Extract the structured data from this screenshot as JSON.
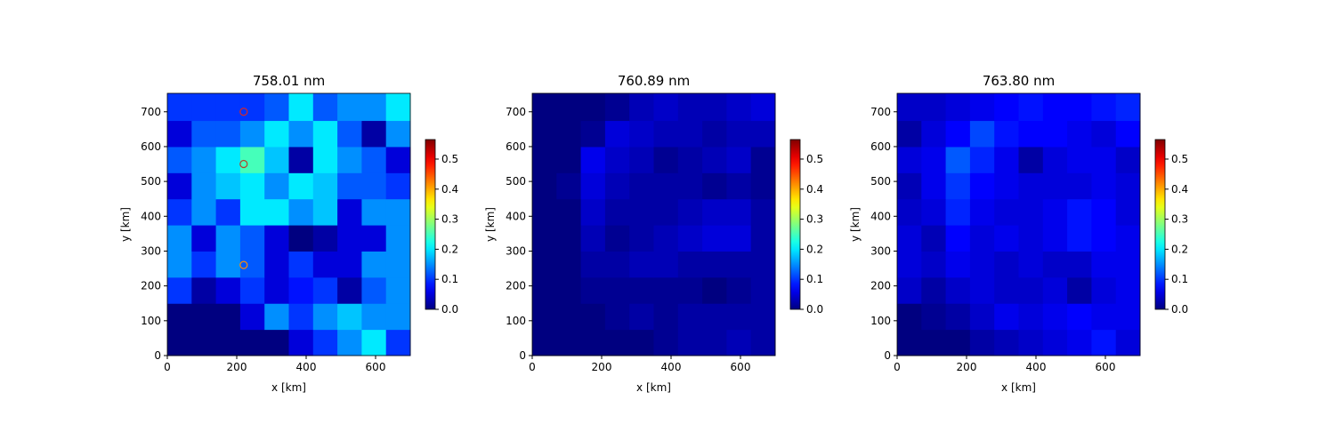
{
  "chart_data": [
    {
      "type": "heatmap",
      "title": "758.01 nm",
      "x_label": "x [km]",
      "y_label": "y [km]",
      "colormap": "jet",
      "xlim": [
        0,
        700
      ],
      "ylim": [
        0,
        753
      ],
      "xticks": [
        0,
        200,
        400,
        600
      ],
      "yticks": [
        0,
        100,
        200,
        300,
        400,
        500,
        600,
        700
      ],
      "clim": [
        0,
        0.565
      ],
      "cticks": [
        {
          "value": 0,
          "label": "0.0"
        },
        0.1,
        0.2,
        0.3,
        0.4,
        0.5
      ],
      "xbins": [
        0,
        70,
        140,
        210,
        280,
        350,
        420,
        490,
        560,
        630,
        700
      ],
      "ybins": [
        0,
        75,
        150,
        225,
        300,
        375,
        450,
        525,
        600,
        675,
        753
      ],
      "z": [
        [
          0.0,
          0.0,
          0.0,
          0.0,
          0.0,
          0.05,
          0.1,
          0.15,
          0.2,
          0.1
        ],
        [
          0.0,
          0.0,
          0.0,
          0.05,
          0.15,
          0.1,
          0.15,
          0.18,
          0.15,
          0.15
        ],
        [
          0.1,
          0.02,
          0.05,
          0.1,
          0.05,
          0.08,
          0.1,
          0.02,
          0.12,
          0.15
        ],
        [
          0.15,
          0.1,
          0.15,
          0.12,
          0.05,
          0.1,
          0.05,
          0.05,
          0.15,
          0.15
        ],
        [
          0.15,
          0.05,
          0.15,
          0.12,
          0.05,
          0.0,
          0.02,
          0.05,
          0.05,
          0.15
        ],
        [
          0.1,
          0.15,
          0.1,
          0.2,
          0.2,
          0.15,
          0.18,
          0.05,
          0.15,
          0.15
        ],
        [
          0.05,
          0.15,
          0.18,
          0.2,
          0.15,
          0.2,
          0.18,
          0.12,
          0.12,
          0.1
        ],
        [
          0.12,
          0.15,
          0.2,
          0.25,
          0.18,
          0.02,
          0.2,
          0.15,
          0.12,
          0.05
        ],
        [
          0.05,
          0.12,
          0.12,
          0.15,
          0.2,
          0.15,
          0.2,
          0.12,
          0.02,
          0.15
        ],
        [
          0.1,
          0.1,
          0.1,
          0.1,
          0.12,
          0.2,
          0.12,
          0.15,
          0.15,
          0.2
        ]
      ],
      "markers": {
        "x": [
          220,
          220,
          220
        ],
        "y": [
          700,
          550,
          260
        ],
        "colors": [
          "#d62728",
          "#b5412a",
          "#ff8c00"
        ]
      }
    },
    {
      "type": "heatmap",
      "title": "760.89 nm",
      "x_label": "x [km]",
      "y_label": "y [km]",
      "colormap": "jet",
      "xlim": [
        0,
        700
      ],
      "ylim": [
        0,
        753
      ],
      "xticks": [
        0,
        200,
        400,
        600
      ],
      "yticks": [
        0,
        100,
        200,
        300,
        400,
        500,
        600,
        700
      ],
      "clim": [
        0,
        0.565
      ],
      "cticks": [
        {
          "value": 0,
          "label": "0.0"
        },
        0.1,
        0.2,
        0.3,
        0.4,
        0.5
      ],
      "xbins": [
        0,
        70,
        140,
        210,
        280,
        350,
        420,
        490,
        560,
        630,
        700
      ],
      "ybins": [
        0,
        75,
        150,
        225,
        300,
        375,
        450,
        525,
        600,
        675,
        753
      ],
      "z": [
        [
          0.0,
          0.0,
          0.0,
          0.0,
          0.0,
          0.01,
          0.02,
          0.02,
          0.03,
          0.02
        ],
        [
          0.0,
          0.0,
          0.0,
          0.01,
          0.02,
          0.01,
          0.02,
          0.02,
          0.02,
          0.02
        ],
        [
          0.0,
          0.0,
          0.01,
          0.01,
          0.01,
          0.01,
          0.01,
          0.0,
          0.01,
          0.02
        ],
        [
          0.0,
          0.0,
          0.02,
          0.02,
          0.03,
          0.03,
          0.02,
          0.02,
          0.02,
          0.02
        ],
        [
          0.0,
          0.0,
          0.03,
          0.01,
          0.02,
          0.03,
          0.04,
          0.05,
          0.05,
          0.02
        ],
        [
          0.0,
          0.0,
          0.04,
          0.02,
          0.02,
          0.02,
          0.03,
          0.04,
          0.04,
          0.02
        ],
        [
          0.0,
          0.01,
          0.05,
          0.03,
          0.02,
          0.02,
          0.02,
          0.01,
          0.02,
          0.01
        ],
        [
          0.0,
          0.0,
          0.06,
          0.04,
          0.03,
          0.01,
          0.02,
          0.03,
          0.04,
          0.01
        ],
        [
          0.0,
          0.0,
          0.01,
          0.05,
          0.04,
          0.03,
          0.03,
          0.02,
          0.03,
          0.03
        ],
        [
          0.0,
          0.0,
          0.0,
          0.01,
          0.03,
          0.04,
          0.03,
          0.03,
          0.04,
          0.05
        ]
      ]
    },
    {
      "type": "heatmap",
      "title": "763.80 nm",
      "x_label": "x [km]",
      "y_label": "y [km]",
      "colormap": "jet",
      "xlim": [
        0,
        700
      ],
      "ylim": [
        0,
        753
      ],
      "xticks": [
        0,
        200,
        400,
        600
      ],
      "yticks": [
        0,
        100,
        200,
        300,
        400,
        500,
        600,
        700
      ],
      "clim": [
        0,
        0.565
      ],
      "cticks": [
        {
          "value": 0,
          "label": "0.0"
        },
        0.1,
        0.2,
        0.3,
        0.4,
        0.5
      ],
      "xbins": [
        0,
        70,
        140,
        210,
        280,
        350,
        420,
        490,
        560,
        630,
        700
      ],
      "ybins": [
        0,
        75,
        150,
        225,
        300,
        375,
        450,
        525,
        600,
        675,
        753
      ],
      "z": [
        [
          0.0,
          0.0,
          0.0,
          0.02,
          0.03,
          0.04,
          0.05,
          0.06,
          0.08,
          0.05
        ],
        [
          0.0,
          0.01,
          0.02,
          0.04,
          0.06,
          0.05,
          0.06,
          0.07,
          0.06,
          0.06
        ],
        [
          0.04,
          0.02,
          0.04,
          0.05,
          0.04,
          0.04,
          0.05,
          0.02,
          0.05,
          0.06
        ],
        [
          0.05,
          0.04,
          0.06,
          0.05,
          0.04,
          0.05,
          0.04,
          0.04,
          0.06,
          0.06
        ],
        [
          0.05,
          0.03,
          0.07,
          0.05,
          0.06,
          0.05,
          0.06,
          0.08,
          0.07,
          0.06
        ],
        [
          0.04,
          0.05,
          0.09,
          0.06,
          0.05,
          0.05,
          0.06,
          0.08,
          0.07,
          0.05
        ],
        [
          0.03,
          0.06,
          0.1,
          0.07,
          0.06,
          0.05,
          0.05,
          0.05,
          0.06,
          0.05
        ],
        [
          0.05,
          0.06,
          0.12,
          0.09,
          0.06,
          0.02,
          0.05,
          0.06,
          0.06,
          0.04
        ],
        [
          0.02,
          0.05,
          0.07,
          0.11,
          0.08,
          0.07,
          0.07,
          0.06,
          0.05,
          0.07
        ],
        [
          0.04,
          0.04,
          0.05,
          0.06,
          0.07,
          0.08,
          0.07,
          0.07,
          0.08,
          0.09
        ]
      ]
    }
  ]
}
